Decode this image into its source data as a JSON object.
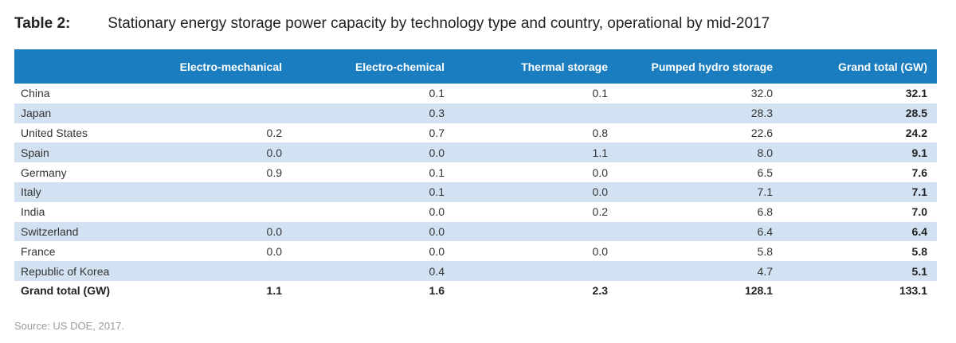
{
  "title": {
    "label": "Table 2:",
    "text": "Stationary energy storage power capacity by technology type and country, operational by mid-2017"
  },
  "table": {
    "headers": [
      "",
      "Electro-mechanical",
      "Electro-chemical",
      "Thermal storage",
      "Pumped hydro storage",
      "Grand total (GW)"
    ],
    "rows": [
      {
        "country": "China",
        "electro_mechanical": "",
        "electro_chemical": "0.1",
        "thermal": "0.1",
        "pumped_hydro": "32.0",
        "total": "32.1"
      },
      {
        "country": "Japan",
        "electro_mechanical": "",
        "electro_chemical": "0.3",
        "thermal": "",
        "pumped_hydro": "28.3",
        "total": "28.5"
      },
      {
        "country": "United States",
        "electro_mechanical": "0.2",
        "electro_chemical": "0.7",
        "thermal": "0.8",
        "pumped_hydro": "22.6",
        "total": "24.2"
      },
      {
        "country": "Spain",
        "electro_mechanical": "0.0",
        "electro_chemical": "0.0",
        "thermal": "1.1",
        "pumped_hydro": "8.0",
        "total": "9.1"
      },
      {
        "country": "Germany",
        "electro_mechanical": "0.9",
        "electro_chemical": "0.1",
        "thermal": "0.0",
        "pumped_hydro": "6.5",
        "total": "7.6"
      },
      {
        "country": "Italy",
        "electro_mechanical": "",
        "electro_chemical": "0.1",
        "thermal": "0.0",
        "pumped_hydro": "7.1",
        "total": "7.1"
      },
      {
        "country": "India",
        "electro_mechanical": "",
        "electro_chemical": "0.0",
        "thermal": "0.2",
        "pumped_hydro": "6.8",
        "total": "7.0"
      },
      {
        "country": "Switzerland",
        "electro_mechanical": "0.0",
        "electro_chemical": "0.0",
        "thermal": "",
        "pumped_hydro": "6.4",
        "total": "6.4"
      },
      {
        "country": "France",
        "electro_mechanical": "0.0",
        "electro_chemical": "0.0",
        "thermal": "0.0",
        "pumped_hydro": "5.8",
        "total": "5.8"
      },
      {
        "country": "Republic of Korea",
        "electro_mechanical": "",
        "electro_chemical": "0.4",
        "thermal": "",
        "pumped_hydro": "4.7",
        "total": "5.1"
      }
    ],
    "grand_total": {
      "country": "Grand total (GW)",
      "electro_mechanical": "1.1",
      "electro_chemical": "1.6",
      "thermal": "2.3",
      "pumped_hydro": "128.1",
      "total": "133.1"
    }
  },
  "source": "Source: US DOE, 2017.",
  "colors": {
    "header_bg": "#1a7dc0",
    "shaded_row": "#d3e2f2"
  }
}
